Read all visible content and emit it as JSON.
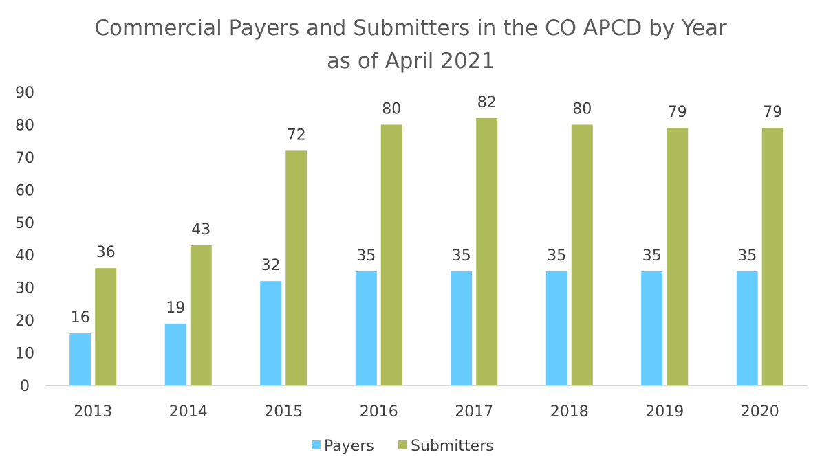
{
  "chart_data": {
    "type": "bar",
    "title": "Commercial Payers and Submitters in the CO APCD by Year",
    "subtitle": "as of April 2021",
    "xlabel": "",
    "ylabel": "",
    "categories": [
      "2013",
      "2014",
      "2015",
      "2016",
      "2017",
      "2018",
      "2019",
      "2020"
    ],
    "series": [
      {
        "name": "Payers",
        "values": [
          16,
          19,
          32,
          35,
          35,
          35,
          35,
          35
        ],
        "color": "#66CCFF"
      },
      {
        "name": "Submitters",
        "values": [
          36,
          43,
          72,
          80,
          82,
          80,
          79,
          79
        ],
        "color": "#ADBB5A"
      }
    ],
    "ylim": [
      0,
      90
    ],
    "yticks": [
      0,
      10,
      20,
      30,
      40,
      50,
      60,
      70,
      80,
      90
    ],
    "grid": false,
    "legend": "bottom-center",
    "data_labels": true,
    "axis_color": "#D9D9D9"
  }
}
